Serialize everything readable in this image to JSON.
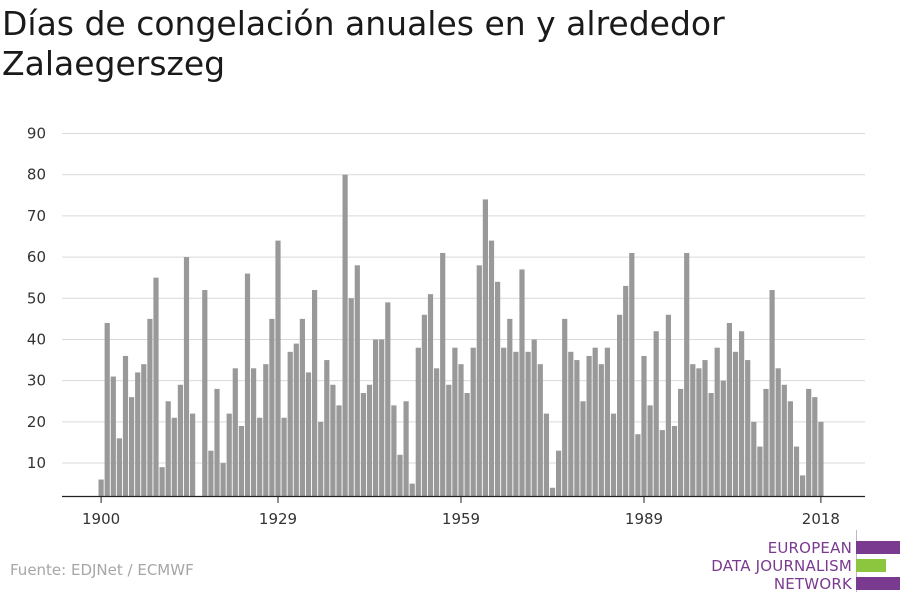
{
  "title": "Días de congelación anuales en y alrededor Zalaegerszeg",
  "source": "Fuente: EDJNet / ECMWF",
  "brand": {
    "lines": [
      "EUROPEAN",
      "DATA JOURNALISM",
      "NETWORK"
    ],
    "colors": [
      "#7a3a8f",
      "#8cc63f",
      "#7a3a8f"
    ]
  },
  "chart_data": {
    "type": "bar",
    "title": "Días de congelación anuales en y alrededor Zalaegerszeg",
    "xlabel": "",
    "ylabel": "",
    "ylim": [
      2,
      90
    ],
    "y_ticks": [
      10,
      20,
      30,
      40,
      50,
      60,
      70,
      80,
      90
    ],
    "x_ticks": [
      1900,
      1929,
      1959,
      1989,
      2018
    ],
    "grid": true,
    "bar_color": "#999999",
    "x": [
      1900,
      1901,
      1902,
      1903,
      1904,
      1905,
      1906,
      1907,
      1908,
      1909,
      1910,
      1911,
      1912,
      1913,
      1914,
      1915,
      1916,
      1917,
      1918,
      1919,
      1920,
      1921,
      1922,
      1923,
      1924,
      1925,
      1926,
      1927,
      1928,
      1929,
      1930,
      1931,
      1932,
      1933,
      1934,
      1935,
      1936,
      1937,
      1938,
      1939,
      1940,
      1941,
      1942,
      1943,
      1944,
      1945,
      1946,
      1947,
      1948,
      1949,
      1950,
      1951,
      1952,
      1953,
      1954,
      1955,
      1956,
      1957,
      1958,
      1959,
      1960,
      1961,
      1962,
      1963,
      1964,
      1965,
      1966,
      1967,
      1968,
      1969,
      1970,
      1971,
      1972,
      1973,
      1974,
      1975,
      1976,
      1977,
      1978,
      1979,
      1980,
      1981,
      1982,
      1983,
      1984,
      1985,
      1986,
      1987,
      1988,
      1989,
      1990,
      1991,
      1992,
      1993,
      1994,
      1995,
      1996,
      1997,
      1998,
      1999,
      2000,
      2001,
      2002,
      2003,
      2004,
      2005,
      2006,
      2007,
      2008,
      2009,
      2010,
      2011,
      2012,
      2013,
      2014,
      2015,
      2016,
      2017,
      2018
    ],
    "values": [
      6,
      44,
      31,
      16,
      36,
      26,
      32,
      34,
      45,
      55,
      9,
      25,
      21,
      29,
      60,
      22,
      2,
      52,
      13,
      28,
      10,
      22,
      33,
      19,
      56,
      33,
      21,
      34,
      45,
      64,
      21,
      37,
      39,
      45,
      32,
      52,
      20,
      35,
      29,
      24,
      80,
      50,
      58,
      27,
      29,
      40,
      40,
      49,
      24,
      12,
      25,
      5,
      38,
      46,
      51,
      33,
      61,
      29,
      38,
      34,
      27,
      38,
      58,
      74,
      64,
      54,
      38,
      45,
      37,
      57,
      37,
      40,
      34,
      22,
      4,
      13,
      45,
      37,
      35,
      25,
      36,
      38,
      34,
      38,
      22,
      46,
      53,
      61,
      17,
      36,
      24,
      42,
      18,
      46,
      19,
      28,
      61,
      34,
      33,
      35,
      27,
      38,
      30,
      44,
      37,
      42,
      35,
      20,
      14,
      28,
      52,
      33,
      29,
      25,
      14,
      7,
      28,
      26,
      20
    ]
  }
}
